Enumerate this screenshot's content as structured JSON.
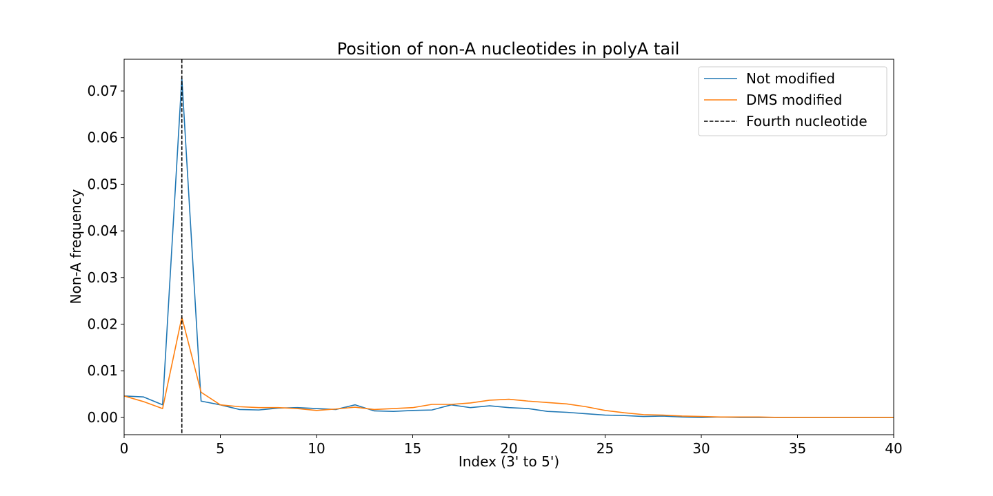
{
  "chart_data": {
    "type": "line",
    "title": "Position of non-A nucleotides in polyA tail",
    "xlabel": "Index (3' to 5')",
    "ylabel": "Non-A frequency",
    "xlim": [
      0,
      40
    ],
    "ylim": [
      -0.0037,
      0.0768
    ],
    "xticks": [
      0,
      5,
      10,
      15,
      20,
      25,
      30,
      35,
      40
    ],
    "xtick_labels": [
      "0",
      "5",
      "10",
      "15",
      "20",
      "25",
      "30",
      "35",
      "40"
    ],
    "yticks": [
      0.0,
      0.01,
      0.02,
      0.03,
      0.04,
      0.05,
      0.06,
      0.07
    ],
    "ytick_labels": [
      "0.00",
      "0.01",
      "0.02",
      "0.03",
      "0.04",
      "0.05",
      "0.06",
      "0.07"
    ],
    "grid": false,
    "legend_position": "top-right",
    "x": [
      0,
      1,
      2,
      3,
      4,
      5,
      6,
      7,
      8,
      9,
      10,
      11,
      12,
      13,
      14,
      15,
      16,
      17,
      18,
      19,
      20,
      21,
      22,
      23,
      24,
      25,
      26,
      27,
      28,
      29,
      30,
      31,
      32,
      33,
      34,
      35,
      36,
      37,
      38,
      39,
      40
    ],
    "series": [
      {
        "name": "Not modified",
        "color": "#1f77b4",
        "style": "solid",
        "values": [
          0.0046,
          0.0044,
          0.0027,
          0.0728,
          0.0035,
          0.0027,
          0.0017,
          0.0016,
          0.002,
          0.0021,
          0.0019,
          0.0017,
          0.0027,
          0.0014,
          0.0013,
          0.0015,
          0.0016,
          0.0027,
          0.0021,
          0.0025,
          0.0021,
          0.0019,
          0.0013,
          0.0011,
          0.0008,
          0.0005,
          0.0004,
          0.0002,
          0.0003,
          0.0001,
          0.0,
          0.0001,
          0.0,
          0.0,
          0.0,
          0.0,
          0.0,
          0.0,
          0.0,
          0.0,
          0.0
        ]
      },
      {
        "name": "DMS modified",
        "color": "#ff7f0e",
        "style": "solid",
        "values": [
          0.0046,
          0.0034,
          0.0019,
          0.0215,
          0.0054,
          0.0027,
          0.0023,
          0.0021,
          0.0021,
          0.0019,
          0.0015,
          0.0018,
          0.0022,
          0.0017,
          0.0019,
          0.0021,
          0.0028,
          0.0028,
          0.0031,
          0.0037,
          0.0039,
          0.0035,
          0.0032,
          0.0029,
          0.0023,
          0.0015,
          0.001,
          0.0006,
          0.0005,
          0.0003,
          0.0002,
          0.0001,
          0.0001,
          0.0001,
          0.0,
          0.0,
          0.0,
          0.0,
          0.0,
          0.0,
          0.0
        ]
      }
    ],
    "vlines": [
      {
        "name": "Fourth nucleotide",
        "x": 3,
        "color": "#000000",
        "style": "dashed"
      }
    ]
  }
}
